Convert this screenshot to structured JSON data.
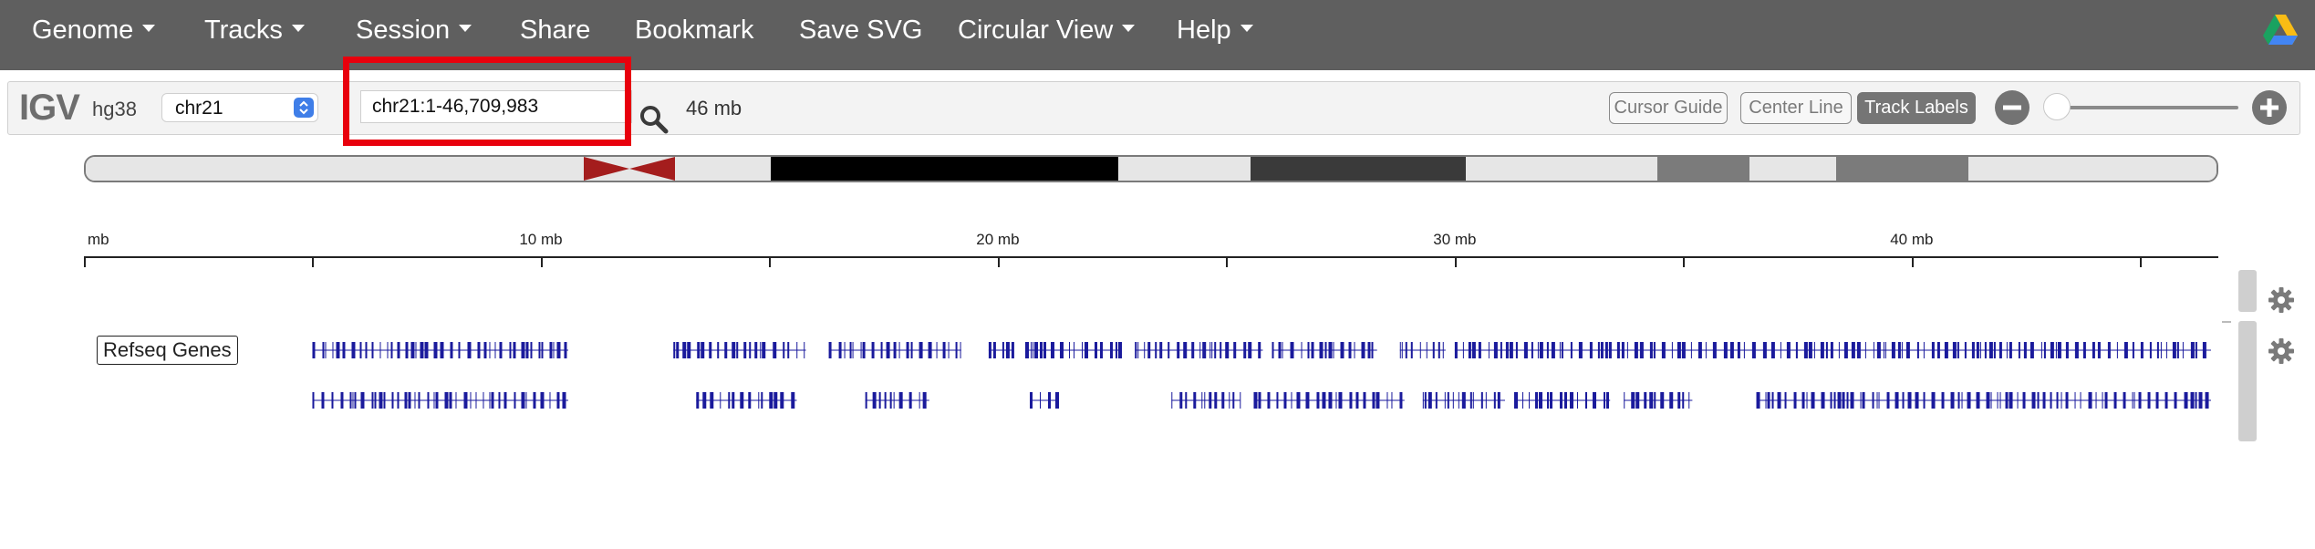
{
  "navbar": {
    "items": [
      {
        "label": "Genome",
        "dropdown": true
      },
      {
        "label": "Tracks",
        "dropdown": true
      },
      {
        "label": "Session",
        "dropdown": true
      },
      {
        "label": "Share",
        "dropdown": false
      },
      {
        "label": "Bookmark",
        "dropdown": false
      },
      {
        "label": "Save SVG",
        "dropdown": false
      },
      {
        "label": "Circular View",
        "dropdown": true
      },
      {
        "label": "Help",
        "dropdown": true
      }
    ],
    "logo_icon": "google-drive-icon"
  },
  "toolbar": {
    "app_logo": "IGV",
    "genome": "hg38",
    "chromosome_select": "chr21",
    "locus_input_value": "chr21:1-46,709,983",
    "window_size": "46 mb",
    "buttons": {
      "cursor_guide": "Cursor Guide",
      "center_line": "Center Line",
      "track_labels": "Track Labels"
    },
    "track_labels_active": true,
    "zoom_slider_level": 0.0
  },
  "ruler": {
    "unit": "mb",
    "left_label": "mb",
    "labels": [
      "10 mb",
      "20 mb",
      "30 mb",
      "40 mb"
    ],
    "visible_range_mb": [
      0,
      46.71
    ],
    "label_positions_mb": [
      10,
      20,
      30,
      40
    ],
    "tick_interval_mb": 5
  },
  "ideogram": {
    "chromosome": "chr21",
    "length_mb": 46.71,
    "bands": [
      {
        "start_mb": 0.0,
        "end_mb": 10.9,
        "stain": "gneg"
      },
      {
        "start_mb": 10.9,
        "end_mb": 12.9,
        "stain": "acen"
      },
      {
        "start_mb": 12.9,
        "end_mb": 15.0,
        "stain": "gneg"
      },
      {
        "start_mb": 15.0,
        "end_mb": 22.6,
        "stain": "gpos100"
      },
      {
        "start_mb": 22.6,
        "end_mb": 25.5,
        "stain": "gneg"
      },
      {
        "start_mb": 25.5,
        "end_mb": 30.2,
        "stain": "gpos75"
      },
      {
        "start_mb": 30.2,
        "end_mb": 34.4,
        "stain": "gneg"
      },
      {
        "start_mb": 34.4,
        "end_mb": 36.4,
        "stain": "gpos50"
      },
      {
        "start_mb": 36.4,
        "end_mb": 38.3,
        "stain": "gneg"
      },
      {
        "start_mb": 38.3,
        "end_mb": 41.2,
        "stain": "gpos50"
      },
      {
        "start_mb": 41.2,
        "end_mb": 46.71,
        "stain": "gneg"
      }
    ],
    "colors": {
      "gneg": "#e6e6e6",
      "acen": "#a41d1d",
      "gpos100": "#000000",
      "gpos75": "#3a3a3a",
      "gpos50": "#7b7b7b"
    }
  },
  "track": {
    "name": "Refseq Genes",
    "color": "#1a1a9c",
    "gene_clusters_row1": [
      [
        5.0,
        10.6
      ],
      [
        12.9,
        15.8
      ],
      [
        16.3,
        19.2
      ],
      [
        19.8,
        20.3
      ],
      [
        20.6,
        22.7
      ],
      [
        23.0,
        25.8
      ],
      [
        26.0,
        28.3
      ],
      [
        28.8,
        29.8
      ],
      [
        30.0,
        46.55
      ]
    ],
    "gene_clusters_row2": [
      [
        5.0,
        10.6
      ],
      [
        13.4,
        15.6
      ],
      [
        17.1,
        18.5
      ],
      [
        20.7,
        21.3
      ],
      [
        23.8,
        25.3
      ],
      [
        25.6,
        28.9
      ],
      [
        29.3,
        31.1
      ],
      [
        31.3,
        33.4
      ],
      [
        33.7,
        35.2
      ],
      [
        36.6,
        46.55
      ]
    ]
  },
  "colors": {
    "navbar_bg": "#5f5f5f",
    "highlight": "#e8000d",
    "gene_blue": "#1a1a9c"
  }
}
